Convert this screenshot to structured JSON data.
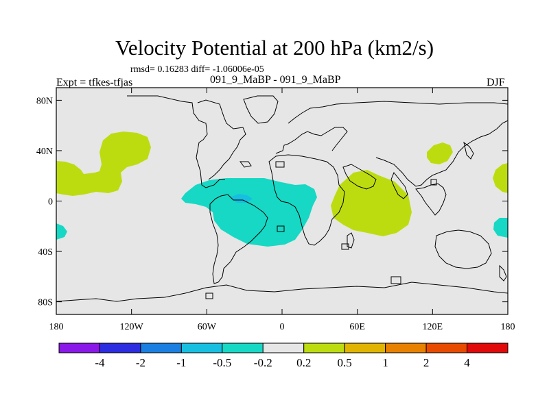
{
  "header": {
    "title": "Velocity Potential at 200 hPa (km2/s)",
    "stats": "rmsd= 0.16283 diff= -1.06006e-05",
    "left_label": "Expt = tfkes-tfjas",
    "center_label": "091_9_MaBP - 091_9_MaBP",
    "right_label": "DJF"
  },
  "map": {
    "lat_ticks": [
      {
        "label": "80N",
        "lat": 80
      },
      {
        "label": "40N",
        "lat": 40
      },
      {
        "label": "0",
        "lat": 0
      },
      {
        "label": "40S",
        "lat": -40
      },
      {
        "label": "80S",
        "lat": -80
      }
    ],
    "lon_ticks": [
      {
        "label": "180",
        "lon": -180
      },
      {
        "label": "120W",
        "lon": -120
      },
      {
        "label": "60W",
        "lon": -60
      },
      {
        "label": "0",
        "lon": 0
      },
      {
        "label": "60E",
        "lon": 60
      },
      {
        "label": "120E",
        "lon": 120
      },
      {
        "label": "180",
        "lon": 180
      }
    ],
    "background_color": "#e6e6e6"
  },
  "colorbar": {
    "colors": [
      "#8a18e8",
      "#2c2ce0",
      "#1a7fe0",
      "#16bfe0",
      "#16d8c4",
      "#e6e6e6",
      "#bddc10",
      "#e0b400",
      "#e88000",
      "#e84a00",
      "#e00a0a"
    ],
    "labels": [
      "-4",
      "-2",
      "-1",
      "-0.5",
      "-0.2",
      "0.2",
      "0.5",
      "1",
      "2",
      "4"
    ]
  }
}
